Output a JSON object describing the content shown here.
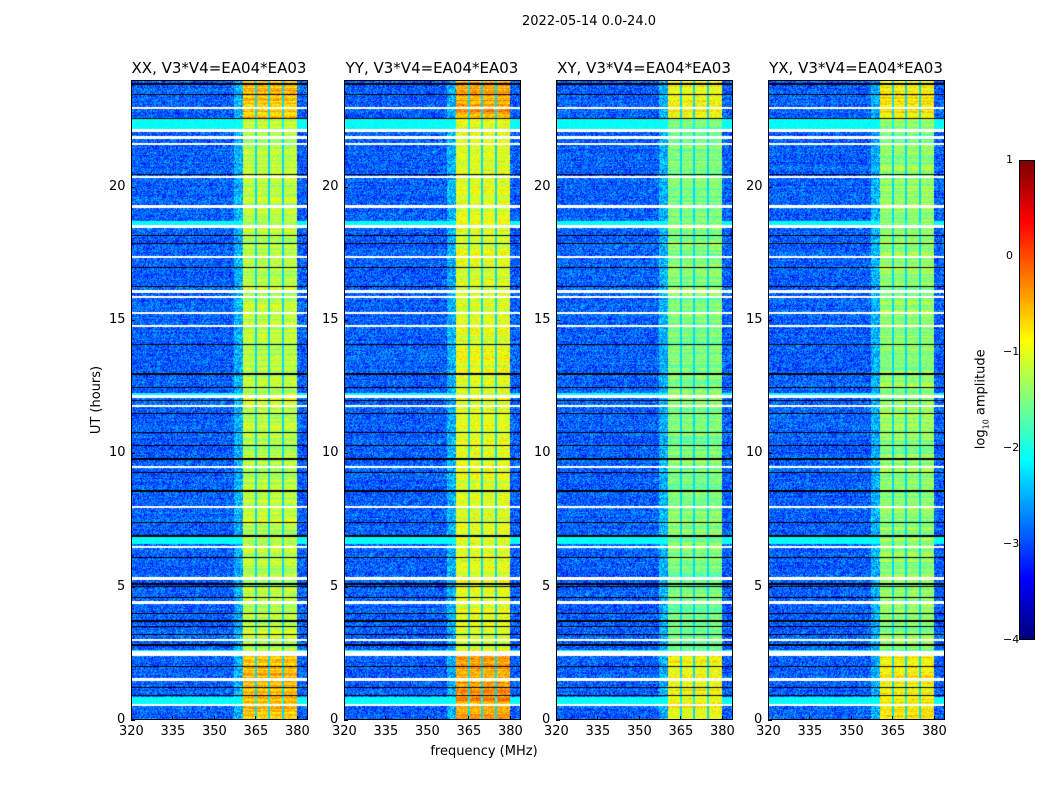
{
  "chart_data": {
    "type": "heatmap",
    "title": "2022-05-14 0.0-24.0",
    "xlabel": "frequency (MHz)",
    "ylabel": "UT (hours)",
    "xlim": [
      320,
      384
    ],
    "ylim": [
      0,
      24
    ],
    "xticks": [
      320,
      335,
      350,
      365,
      380
    ],
    "yticks": [
      0,
      5,
      10,
      15,
      20
    ],
    "panels": [
      {
        "title": "XX, V3*V4=EA04*EA03",
        "band_level": -1.2
      },
      {
        "title": "YY, V3*V4=EA04*EA03",
        "band_level": -1.0
      },
      {
        "title": "XY, V3*V4=EA04*EA03",
        "band_level": -1.5
      },
      {
        "title": "YX, V3*V4=EA04*EA03",
        "band_level": -1.4
      }
    ],
    "background_level": -2.9,
    "rfi_band_mhz": [
      360.5,
      380
    ],
    "band_gaps_mhz": [
      365,
      370,
      375
    ],
    "flagged_white_hours": [
      0.55,
      1.5,
      2.45,
      2.55,
      12.15,
      15.9,
      16.1,
      18.55,
      21.65,
      21.9,
      22.15,
      20.4,
      19.3,
      15.3,
      14.8,
      9.5,
      8.0,
      6.5,
      5.3,
      4.4,
      3.0,
      23.0,
      17.4,
      11.8
    ],
    "flagged_black_hours": [
      0.9,
      1.2,
      2.0,
      2.8,
      3.2,
      3.5,
      3.7,
      4.0,
      4.6,
      5.0,
      5.1,
      6.1,
      6.9,
      7.4,
      8.6,
      9.3,
      9.8,
      10.3,
      10.8,
      11.5,
      12.0,
      12.5,
      13.0,
      14.1,
      16.3,
      17.0,
      17.9,
      18.2,
      20.5,
      22.6,
      23.5,
      23.9
    ],
    "cyan_rows_hours": [
      [
        0.6,
        0.85
      ],
      [
        2.45,
        2.6
      ],
      [
        6.6,
        6.85
      ],
      [
        12.1,
        12.3
      ],
      [
        22.2,
        22.6
      ],
      [
        18.6,
        18.75
      ]
    ],
    "colorbar": {
      "label": "log10 amplitude",
      "label_main": "log",
      "label_sub": "10",
      "label_rest": " amplitude",
      "range": [
        -4,
        1
      ],
      "ticks": [
        1,
        0,
        -1,
        -2,
        -3,
        -4
      ],
      "tick_labels": [
        "1",
        "0",
        "−1",
        "−2",
        "−3",
        "−4"
      ],
      "colormap": "jet"
    }
  }
}
